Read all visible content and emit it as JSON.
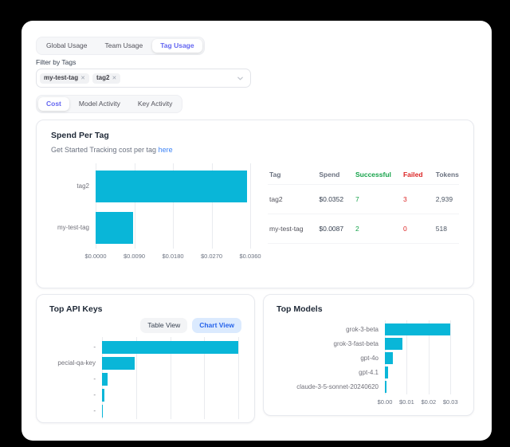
{
  "colors": {
    "accent_purple": "#6366f1",
    "bar_cyan": "#09b6d8",
    "success_green": "#16a34a",
    "fail_red": "#dc2626",
    "link_blue": "#3b82f6",
    "chart_view_bg": "#dbeafe",
    "chart_view_text": "#2563eb"
  },
  "tabs_primary": {
    "items": [
      "Global Usage",
      "Team Usage",
      "Tag Usage"
    ],
    "active": "Tag Usage"
  },
  "filter": {
    "label": "Filter by Tags",
    "chips": [
      "my-test-tag",
      "tag2"
    ]
  },
  "tabs_secondary": {
    "items": [
      "Cost",
      "Model Activity",
      "Key Activity"
    ],
    "active": "Cost"
  },
  "spend_card": {
    "title": "Spend Per Tag",
    "subtitle_prefix": "Get Started Tracking cost per tag ",
    "subtitle_link": "here",
    "table": {
      "headers": [
        "Tag",
        "Spend",
        "Successful",
        "Failed",
        "Tokens"
      ],
      "rows": [
        [
          "tag2",
          "$0.0352",
          "7",
          "3",
          "2,939"
        ],
        [
          "my-test-tag",
          "$0.0087",
          "2",
          "0",
          "518"
        ]
      ]
    }
  },
  "api_keys_card": {
    "title": "Top API Keys",
    "view_buttons": [
      "Table View",
      "Chart View"
    ],
    "active_view": "Chart View"
  },
  "models_card": {
    "title": "Top Models"
  },
  "chart_data": [
    {
      "id": "spend-per-tag",
      "type": "bar",
      "orientation": "horizontal",
      "title": "Spend Per Tag",
      "categories": [
        "tag2",
        "my-test-tag"
      ],
      "values": [
        0.0352,
        0.0087
      ],
      "xlim": [
        0,
        0.036
      ],
      "ticks": [
        {
          "label": "$0.0000",
          "value": 0
        },
        {
          "label": "$0.0090",
          "value": 0.009
        },
        {
          "label": "$0.0180",
          "value": 0.018
        },
        {
          "label": "$0.0270",
          "value": 0.027
        },
        {
          "label": "$0.0360",
          "value": 0.036
        }
      ],
      "grid": "vertical"
    },
    {
      "id": "top-api-keys",
      "type": "bar",
      "orientation": "horizontal",
      "title": "Top API Keys",
      "categories": [
        "-",
        "pecial-qa-key",
        "-",
        "-",
        "-"
      ],
      "values": [
        0.0305,
        0.0073,
        0.0013,
        0.0006,
        0.0001
      ],
      "xlim": [
        0,
        0.0305
      ],
      "ticks": [],
      "gridlines_pct": [
        0,
        25,
        50,
        75,
        100
      ],
      "grid": "vertical",
      "note": "x-axis labels clipped by card edge"
    },
    {
      "id": "top-models",
      "type": "bar",
      "orientation": "horizontal",
      "title": "Top Models",
      "categories": [
        "grok-3-beta",
        "grok-3-fast-beta",
        "gpt-4o",
        "gpt-4.1",
        "claude-3-5-sonnet-20240620"
      ],
      "values": [
        0.03,
        0.0082,
        0.0037,
        0.0015,
        0.0006
      ],
      "xlim": [
        0,
        0.031
      ],
      "ticks": [
        {
          "label": "$0.00",
          "value": 0
        },
        {
          "label": "$0.01",
          "value": 0.01
        },
        {
          "label": "$0.02",
          "value": 0.02
        },
        {
          "label": "$0.03",
          "value": 0.03
        }
      ],
      "grid": "vertical"
    }
  ]
}
